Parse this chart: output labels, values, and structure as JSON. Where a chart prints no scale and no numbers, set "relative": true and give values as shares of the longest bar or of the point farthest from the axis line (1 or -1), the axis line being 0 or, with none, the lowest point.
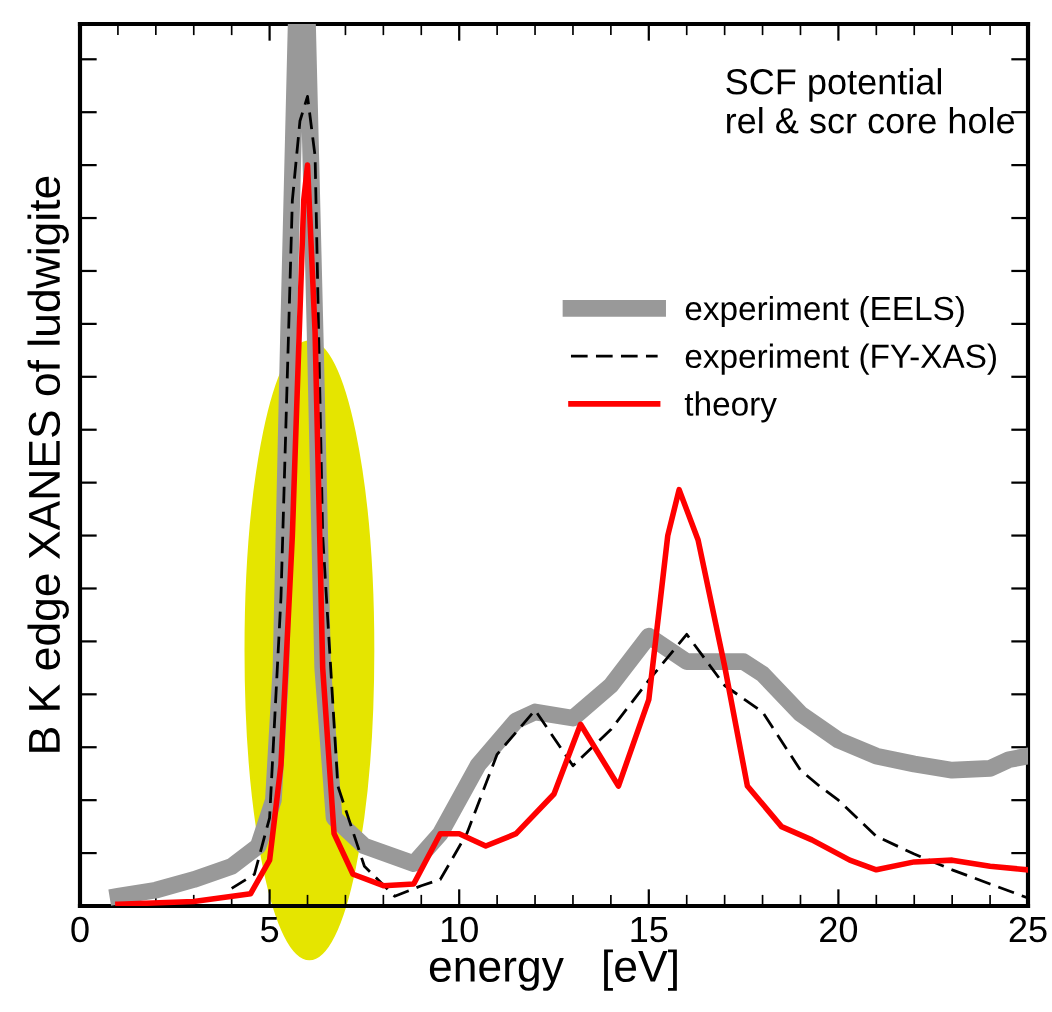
{
  "chart_data": {
    "type": "line",
    "relative": true,
    "xlabel": "energy   [eV]",
    "ylabel": "B K edge XANES of ludwigite",
    "annotations": [
      "SCF potential\nrel & scr core hole"
    ],
    "xlim": [
      0,
      25
    ],
    "xticks": [
      0,
      5,
      10,
      15,
      20,
      25
    ],
    "tick_labels": "x",
    "legend": "right",
    "grid": false,
    "series": [
      {
        "name": "experiment (EELS)",
        "color": "#999999",
        "line_style": "solid",
        "x": [
          1,
          2,
          3,
          4,
          4.7,
          5.1,
          5.3,
          5.5,
          5.7,
          6.0,
          6.2,
          6.4,
          6.7,
          7.5,
          8.8,
          9.5,
          10.5,
          11.5,
          12,
          13,
          14,
          15,
          16,
          17.5,
          18,
          19,
          20,
          21,
          22,
          23,
          24,
          24.5,
          25
        ],
        "values": [
          0.011,
          0.018,
          0.03,
          0.045,
          0.068,
          0.12,
          0.27,
          0.65,
          1.0,
          1.0,
          0.65,
          0.27,
          0.1,
          0.068,
          0.048,
          0.082,
          0.16,
          0.21,
          0.22,
          0.213,
          0.25,
          0.306,
          0.277,
          0.277,
          0.263,
          0.218,
          0.188,
          0.17,
          0.161,
          0.154,
          0.156,
          0.166,
          0.17
        ]
      },
      {
        "name": "experiment (FY-XAS)",
        "color": "#000000",
        "line_style": "dashed",
        "x": [
          4,
          4.6,
          5.0,
          5.3,
          5.6,
          5.8,
          6.0,
          6.2,
          6.4,
          6.8,
          7.5,
          8.3,
          9,
          9.5,
          10.2,
          11,
          12,
          13,
          14,
          15,
          16,
          17,
          18,
          19,
          19.5,
          20,
          21,
          22,
          23,
          24,
          25
        ],
        "values": [
          0.02,
          0.036,
          0.1,
          0.35,
          0.8,
          0.89,
          0.918,
          0.85,
          0.42,
          0.136,
          0.045,
          0.011,
          0.023,
          0.03,
          0.082,
          0.172,
          0.222,
          0.159,
          0.2,
          0.256,
          0.308,
          0.25,
          0.22,
          0.154,
          0.136,
          0.12,
          0.079,
          0.059,
          0.041,
          0.025,
          0.009
        ]
      },
      {
        "name": "theory",
        "color": "#ff0000",
        "line_style": "solid",
        "x": [
          1,
          3,
          4.5,
          5.0,
          5.3,
          5.6,
          5.9,
          6.0,
          6.2,
          6.4,
          6.7,
          7.2,
          8.0,
          8.8,
          9.5,
          10,
          10.7,
          11.5,
          12.5,
          13.2,
          14.2,
          15.0,
          15.5,
          15.8,
          16.3,
          17,
          17.6,
          18.5,
          19.3,
          20.3,
          21,
          22,
          23,
          24,
          25
        ],
        "values": [
          0.002,
          0.005,
          0.014,
          0.052,
          0.16,
          0.42,
          0.8,
          0.84,
          0.65,
          0.27,
          0.082,
          0.036,
          0.023,
          0.025,
          0.082,
          0.082,
          0.068,
          0.082,
          0.127,
          0.206,
          0.136,
          0.234,
          0.42,
          0.472,
          0.415,
          0.272,
          0.136,
          0.09,
          0.075,
          0.052,
          0.041,
          0.05,
          0.052,
          0.045,
          0.041
        ]
      }
    ]
  }
}
